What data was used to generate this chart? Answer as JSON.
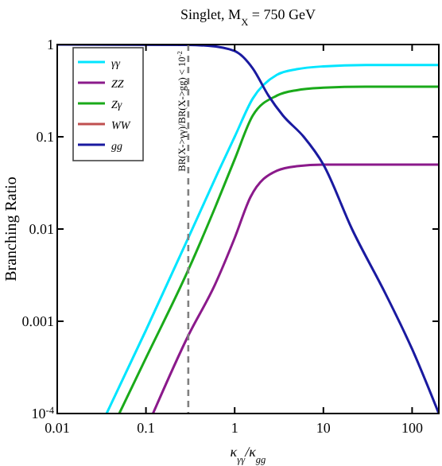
{
  "chart_data": {
    "type": "line",
    "title": "Singlet, M$_{X}$ = 750 GeV",
    "xlabel": "κ$_{γγ}$/κ$_{gg}$",
    "ylabel": "Branching Ratio",
    "log": "xy",
    "xlim": [
      0.01,
      200
    ],
    "ylim": [
      0.0001,
      1
    ],
    "xticks": [
      0.01,
      0.1,
      1,
      10,
      100
    ],
    "yticks": [
      {
        "value": 0.0001,
        "label": "10$^{-4}$"
      },
      0.001,
      0.01,
      0.1,
      1
    ],
    "legend": "top left",
    "grid": false,
    "line_style": "solid",
    "ref_lines": [
      {
        "axis": "x",
        "value": 0.3,
        "label": "BR(X->γγ)/BR(X->gg) < 10$^{-2}$",
        "color": "#808080",
        "line_style": "dashed"
      }
    ],
    "series": [
      {
        "name": "γγ",
        "color": "#00e5ff",
        "x": [
          0.036,
          0.1,
          0.3,
          0.64,
          1,
          1.6,
          3,
          5,
          10,
          30,
          200
        ],
        "values": [
          0.0001,
          0.0008,
          0.008,
          0.04,
          0.1,
          0.26,
          0.47,
          0.54,
          0.58,
          0.6,
          0.6
        ]
      },
      {
        "name": "ZZ",
        "color": "#8b1a8b",
        "x": [
          0.12,
          0.3,
          0.6,
          1,
          1.5,
          3,
          5,
          10,
          30,
          200
        ],
        "values": [
          0.0001,
          0.0007,
          0.0025,
          0.008,
          0.022,
          0.043,
          0.048,
          0.05,
          0.05,
          0.05
        ]
      },
      {
        "name": "Zγ",
        "color": "#1aaa1a",
        "x": [
          0.05,
          0.1,
          0.3,
          0.6,
          1,
          1.6,
          3,
          5,
          10,
          30,
          200
        ],
        "values": [
          0.0001,
          0.0004,
          0.0036,
          0.017,
          0.057,
          0.17,
          0.28,
          0.32,
          0.34,
          0.35,
          0.35
        ]
      },
      {
        "name": "WW",
        "color": "#c05050"
      },
      {
        "name": "gg",
        "color": "#1a1aa0",
        "x": [
          0.01,
          0.3,
          0.5,
          1,
          1.6,
          2.4,
          3.5,
          6,
          10,
          21,
          50,
          100,
          200
        ],
        "values": [
          1,
          0.99,
          0.97,
          0.85,
          0.55,
          0.28,
          0.17,
          0.1,
          0.05,
          0.01,
          0.002,
          0.0005,
          0.0001
        ]
      }
    ]
  }
}
